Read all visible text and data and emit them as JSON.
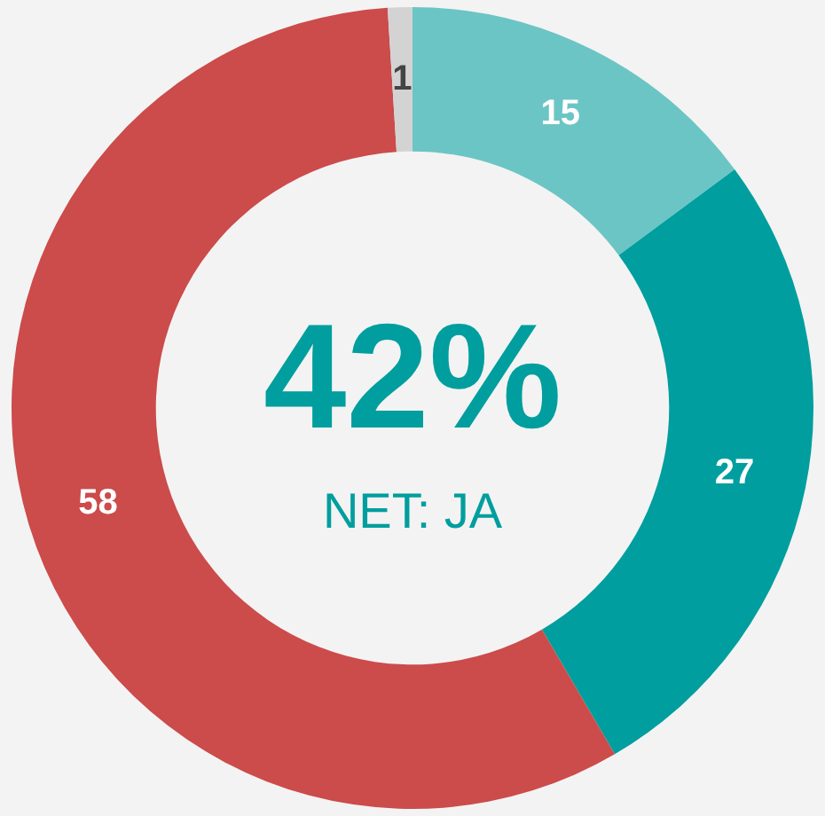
{
  "chart_data": {
    "type": "donut",
    "categories": [
      null,
      null,
      null,
      null
    ],
    "values": [
      15,
      27,
      58,
      1
    ],
    "colors": [
      "#6cc5c5",
      "#009e9e",
      "#cc4b4b",
      "#d3d3d3"
    ],
    "data_labels": true,
    "annotations": [
      "42%",
      "NET: JA"
    ]
  }
}
